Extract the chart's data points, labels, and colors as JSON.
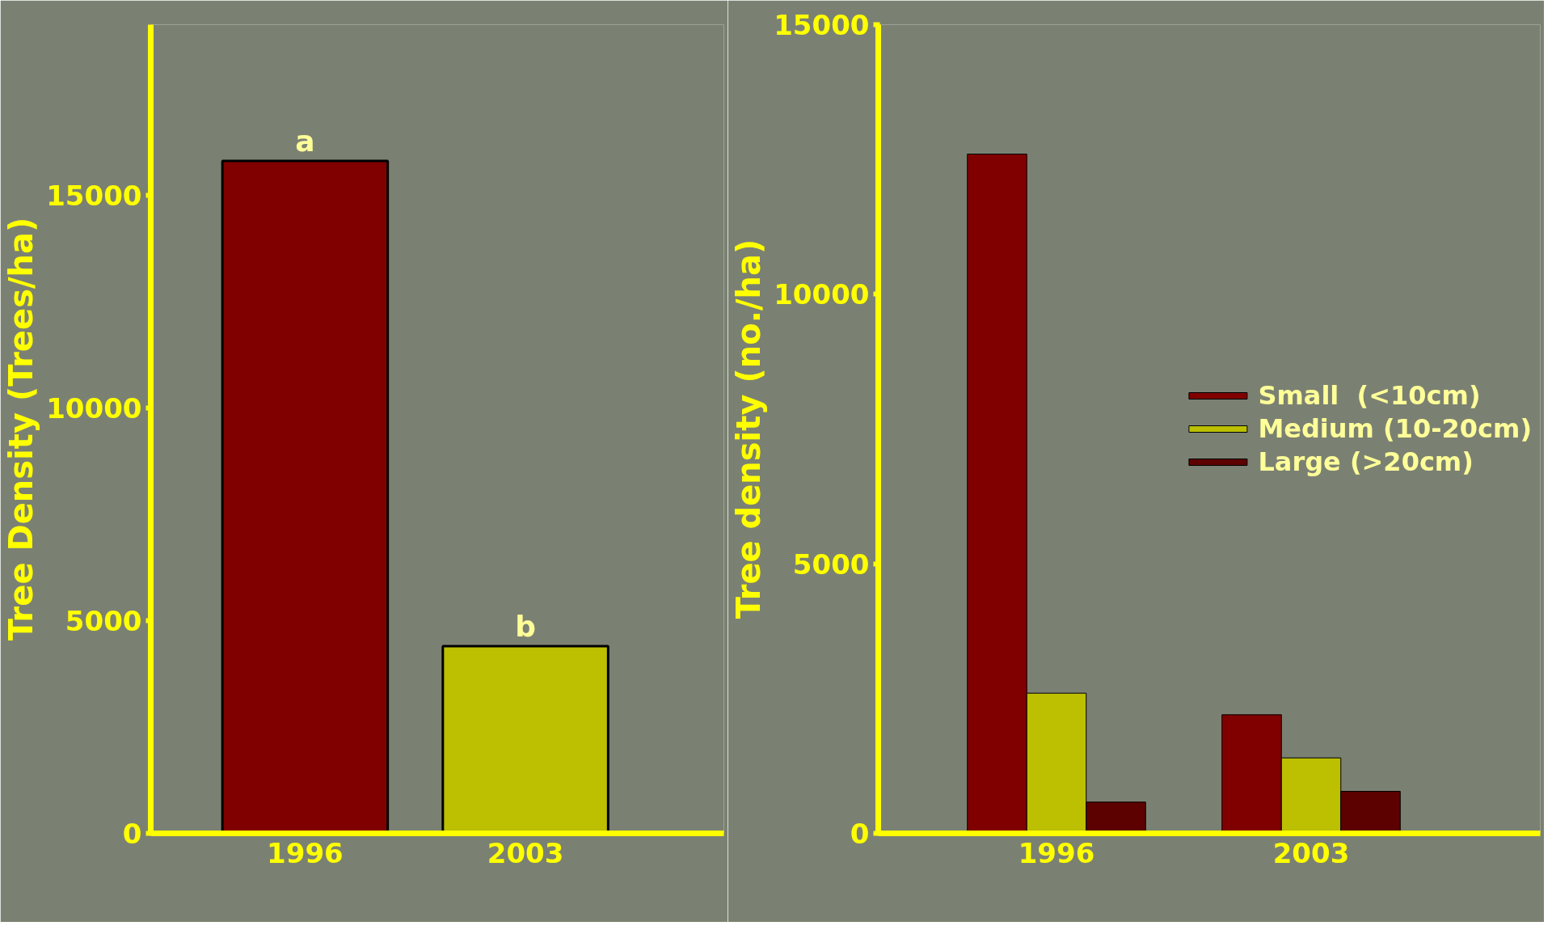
{
  "chart_data": [
    {
      "type": "bar",
      "categories": [
        "1996",
        "2003"
      ],
      "ylabel": "Tree Density (Trees/ha)",
      "colors": [
        "#800000",
        "#bcc000"
      ],
      "values": [
        15800,
        4400
      ],
      "ylim": [
        0,
        19000
      ],
      "yticks": [
        0,
        5000,
        10000,
        15000
      ],
      "annotations": [
        {
          "text": "a",
          "x": "1996",
          "y": 15800
        },
        {
          "text": "b",
          "x": "2003",
          "y": 4400
        }
      ]
    },
    {
      "type": "bar",
      "categories": [
        "1996",
        "2003"
      ],
      "ylabel": "Tree density (no./ha)",
      "ylim": [
        0,
        15000
      ],
      "yticks": [
        0,
        5000,
        10000,
        15000
      ],
      "legend": "right",
      "series": [
        {
          "name": "Small  (<10cm)",
          "color": "#800000",
          "values": [
            12600,
            2200
          ]
        },
        {
          "name": "Medium (10-20cm)",
          "color": "#bcc000",
          "values": [
            2600,
            1400
          ]
        },
        {
          "name": "Large (>20cm)",
          "color": "#5c0000",
          "values": [
            580,
            780
          ]
        }
      ]
    }
  ]
}
